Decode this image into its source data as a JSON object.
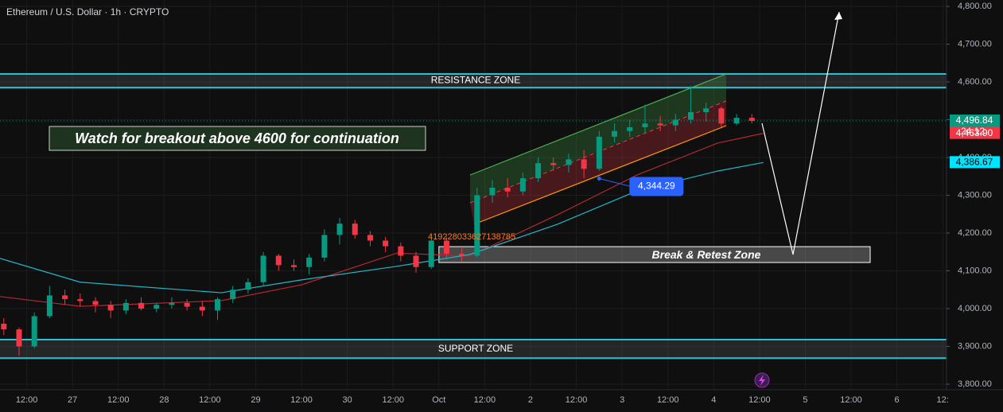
{
  "chart_data": {
    "type": "candlestick",
    "title": "Ethereum / U.S. Dollar · 1h · CRYPTO",
    "ylim": [
      3800,
      4800
    ],
    "yticks": [
      {
        "value": 3800,
        "label": "3,800.00"
      },
      {
        "value": 3900,
        "label": "3,900.00"
      },
      {
        "value": 4000,
        "label": "4,000.00"
      },
      {
        "value": 4100,
        "label": "4,100.00"
      },
      {
        "value": 4200,
        "label": "4,200.00"
      },
      {
        "value": 4300,
        "label": "4,300.00"
      },
      {
        "value": 4400,
        "label": "4,400.00"
      },
      {
        "value": 4500,
        "label": "4,500.00"
      },
      {
        "value": 4600,
        "label": "4,600.00"
      },
      {
        "value": 4700,
        "label": "4,700.00"
      },
      {
        "value": 4800,
        "label": "4,800.00"
      }
    ],
    "xlim": [
      5,
      253
    ],
    "xticks": [
      {
        "value": 12,
        "label": "12:00"
      },
      {
        "value": 24,
        "label": "27"
      },
      {
        "value": 36,
        "label": "12:00"
      },
      {
        "value": 48,
        "label": "28"
      },
      {
        "value": 60,
        "label": "12:00"
      },
      {
        "value": 72,
        "label": "29"
      },
      {
        "value": 84,
        "label": "12:00"
      },
      {
        "value": 96,
        "label": "30"
      },
      {
        "value": 108,
        "label": "12:00"
      },
      {
        "value": 120,
        "label": "Oct"
      },
      {
        "value": 132,
        "label": "12:00"
      },
      {
        "value": 144,
        "label": "2"
      },
      {
        "value": 156,
        "label": "12:00"
      },
      {
        "value": 168,
        "label": "3"
      },
      {
        "value": 180,
        "label": "12:00"
      },
      {
        "value": 192,
        "label": "4"
      },
      {
        "value": 204,
        "label": "12:00"
      },
      {
        "value": 216,
        "label": "5"
      },
      {
        "value": 228,
        "label": "12:00"
      },
      {
        "value": 240,
        "label": "6"
      },
      {
        "value": 252,
        "label": "12:"
      }
    ],
    "up_color": "#089981",
    "down_color": "#f23645",
    "grid": true,
    "candles": {
      "x": [
        6,
        10,
        14,
        18,
        22,
        26,
        30,
        34,
        38,
        42,
        46,
        50,
        54,
        58,
        62,
        66,
        70,
        74,
        78,
        82,
        86,
        90,
        94,
        98,
        102,
        106,
        110,
        114,
        118,
        122,
        126,
        130,
        134,
        138,
        142,
        146,
        150,
        154,
        158,
        162,
        166,
        170,
        174,
        178,
        182,
        186,
        190,
        194,
        198,
        202
      ],
      "open": [
        3960,
        3945,
        3900,
        3980,
        4035,
        4025,
        4020,
        4010,
        3995,
        4015,
        4000,
        4010,
        4015,
        4005,
        3995,
        4025,
        4050,
        4070,
        4140,
        4115,
        4110,
        4135,
        4195,
        4225,
        4195,
        4180,
        4165,
        4140,
        4110,
        4180,
        4145,
        4140,
        4300,
        4320,
        4310,
        4345,
        4385,
        4380,
        4395,
        4370,
        4455,
        4470,
        4480,
        4490,
        4485,
        4500,
        4520,
        4530,
        4490,
        4505
      ],
      "high": [
        3975,
        3950,
        3990,
        4060,
        4050,
        4040,
        4030,
        4020,
        4025,
        4030,
        4015,
        4030,
        4025,
        4020,
        4030,
        4060,
        4080,
        4150,
        4145,
        4130,
        4145,
        4210,
        4240,
        4235,
        4205,
        4190,
        4175,
        4150,
        4195,
        4190,
        4160,
        4320,
        4340,
        4345,
        4360,
        4400,
        4400,
        4410,
        4420,
        4470,
        4490,
        4500,
        4540,
        4510,
        4515,
        4590,
        4545,
        4535,
        4515,
        4515
      ],
      "low": [
        3930,
        3875,
        3895,
        3975,
        4010,
        4005,
        3990,
        3975,
        3985,
        3995,
        3990,
        4000,
        3995,
        3980,
        3970,
        4015,
        4040,
        4060,
        4100,
        4100,
        4090,
        4125,
        4170,
        4185,
        4165,
        4150,
        4125,
        4095,
        4105,
        4130,
        4125,
        4135,
        4280,
        4295,
        4300,
        4335,
        4365,
        4360,
        4345,
        4365,
        4440,
        4455,
        4465,
        4470,
        4470,
        4490,
        4495,
        4480,
        4485,
        4490
      ],
      "close": [
        3945,
        3900,
        3980,
        4035,
        4025,
        4020,
        4010,
        3995,
        4015,
        4000,
        4010,
        4015,
        4005,
        3995,
        4025,
        4050,
        4070,
        4140,
        4115,
        4110,
        4135,
        4195,
        4225,
        4195,
        4180,
        4165,
        4140,
        4110,
        4180,
        4145,
        4140,
        4300,
        4320,
        4310,
        4345,
        4385,
        4380,
        4395,
        4370,
        4455,
        4470,
        4480,
        4490,
        4485,
        4500,
        4520,
        4530,
        4490,
        4505,
        4496.84
      ]
    },
    "lines": [
      {
        "color": "#b22833",
        "x": [
          5,
          26,
          63,
          84,
          109,
          128,
          151,
          172,
          193,
          205
        ],
        "values": [
          4032,
          4006,
          4021,
          4063,
          4147,
          4139,
          4248,
          4354,
          4438,
          4463.9
        ]
      },
      {
        "color": "#22b8c8",
        "x": [
          5,
          26,
          63,
          84,
          109,
          128,
          151,
          172,
          193,
          205
        ],
        "values": [
          4133,
          4070,
          4042,
          4076,
          4112,
          4143,
          4223,
          4312,
          4364,
          4386.67
        ]
      }
    ],
    "price_labels": [
      {
        "value": 4496.84,
        "label": "4,496.84",
        "color": "#089981"
      },
      {
        "value": 4463.9,
        "label": "4,463.90",
        "color": "#f23645"
      },
      {
        "value": 4386.67,
        "label": "4,386.67",
        "color": "#00e5ff"
      }
    ],
    "countdown": "24:12",
    "zones": [
      {
        "label": "RESISTANCE ZONE",
        "low": 4585,
        "high": 4621
      },
      {
        "label": "SUPPORT ZONE",
        "low": 3869,
        "high": 3918
      }
    ],
    "retest_zone": {
      "label": "Break & Retest Zone",
      "low": 4122,
      "high": 4164,
      "x": [
        120,
        233
      ]
    },
    "callout": {
      "label": "4,344.29",
      "value": 4344.29,
      "x": 162
    },
    "note": "Watch for breakout above 4600 for continuation",
    "orange_text": "419228033627138785"
  }
}
